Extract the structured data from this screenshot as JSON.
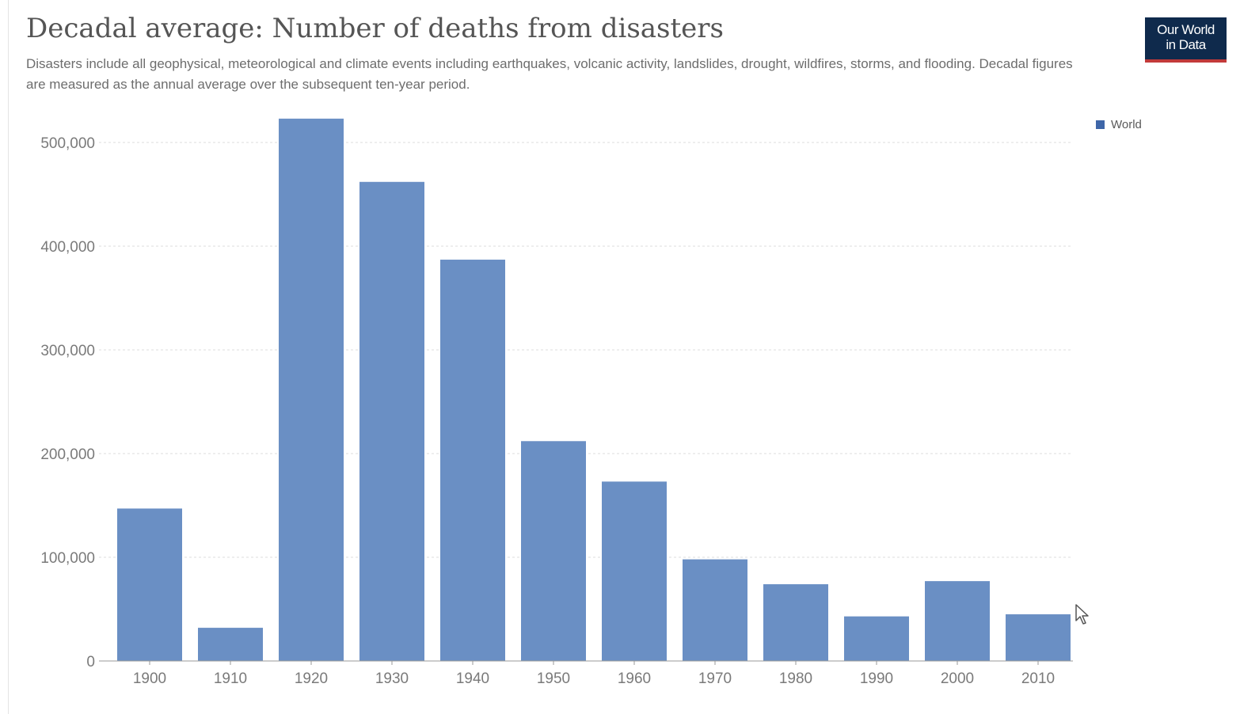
{
  "header": {
    "title": "Decadal average: Number of deaths from disasters",
    "subtitle": "Disasters include all geophysical, meteorological and climate events including earthquakes, volcanic activity, landslides, drought, wildfires, storms, and flooding. Decadal figures are measured as the annual average over the subsequent ten-year period.",
    "logo_line1": "Our World",
    "logo_line2": "in Data",
    "logo_bg": "#0f2a4c",
    "logo_accent": "#c23a3a"
  },
  "colors": {
    "bar": "#6a8fc4",
    "legend": "#3e66a8",
    "grid": "#dddddd",
    "axis": "#999999"
  },
  "chart_data": {
    "type": "bar",
    "title": "Decadal average: Number of deaths from disasters",
    "xlabel": "",
    "ylabel": "",
    "categories": [
      "1900",
      "1910",
      "1920",
      "1930",
      "1940",
      "1950",
      "1960",
      "1970",
      "1980",
      "1990",
      "2000",
      "2010"
    ],
    "series": [
      {
        "name": "World",
        "values": [
          147000,
          32000,
          523000,
          462000,
          387000,
          212000,
          173000,
          98000,
          74000,
          43000,
          77000,
          45000
        ]
      }
    ],
    "ylim": [
      0,
      500000
    ],
    "yticks": [
      0,
      100000,
      200000,
      300000,
      400000,
      500000
    ],
    "ytick_labels": [
      "0",
      "100,000",
      "200,000",
      "300,000",
      "400,000",
      "500,000"
    ],
    "grid": true,
    "legend_position": "top-right"
  }
}
